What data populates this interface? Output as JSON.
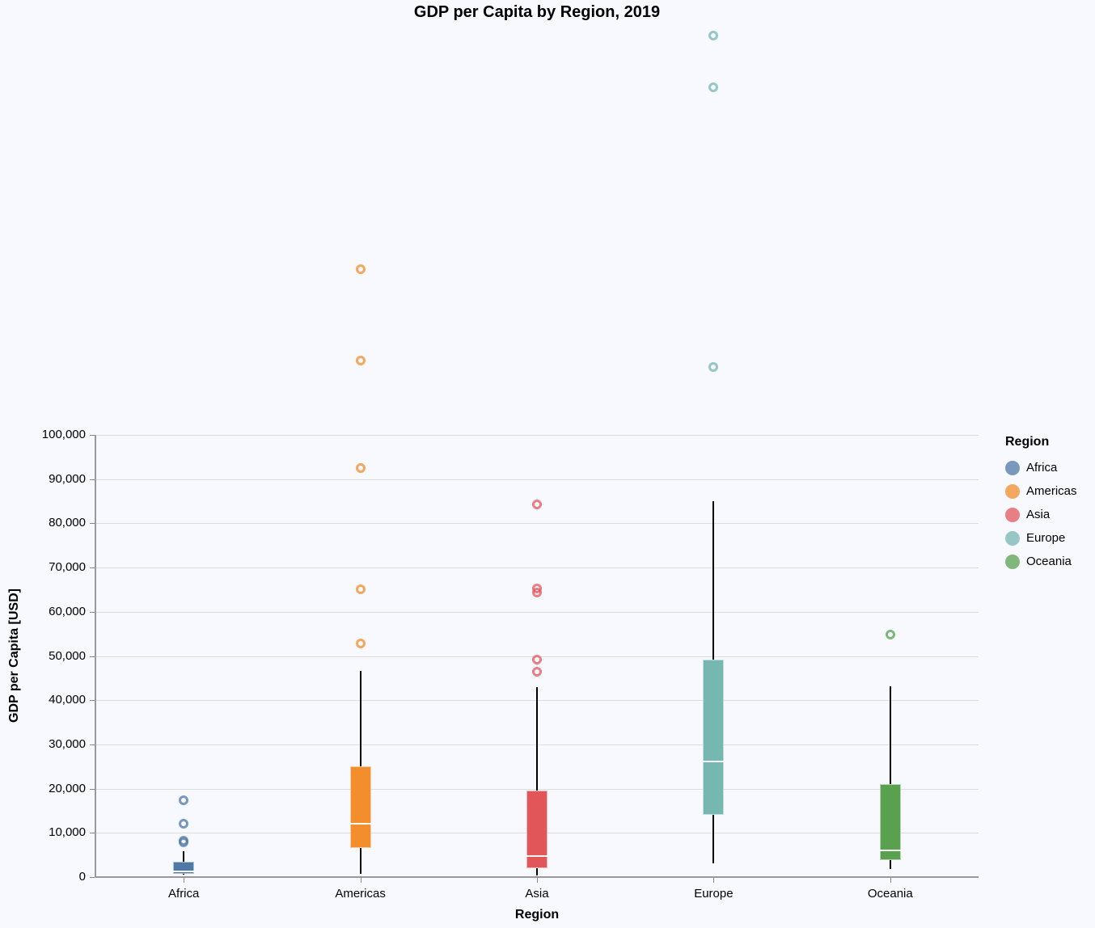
{
  "title": "GDP per Capita by Region, 2019",
  "chart_data": {
    "type": "boxplot",
    "title": "GDP per Capita by Region, 2019",
    "xlabel": "Region",
    "ylabel": "GDP per Capita [USD]",
    "ylim": [
      0,
      100000
    ],
    "yticks": [
      0,
      10000,
      20000,
      30000,
      40000,
      50000,
      60000,
      70000,
      80000,
      90000,
      100000
    ],
    "ytick_labels": [
      "0",
      "10,000",
      "20,000",
      "30,000",
      "40,000",
      "50,000",
      "60,000",
      "70,000",
      "80,000",
      "90,000",
      "100,000"
    ],
    "grid": true,
    "outliers_exceed_axis": true,
    "legend_position": "right",
    "categories": [
      "Africa",
      "Americas",
      "Asia",
      "Europe",
      "Oceania"
    ],
    "series": [
      {
        "name": "Africa",
        "color": "#4e79a7",
        "whisker_low": 600,
        "q1": 700,
        "median": 1300,
        "q3": 3400,
        "whisker_high": 5800,
        "outliers": [
          7900,
          8200,
          12000,
          17400
        ]
      },
      {
        "name": "Americas",
        "color": "#f28e2b",
        "whisker_low": 700,
        "q1": 6600,
        "median": 12100,
        "q3": 25100,
        "whisker_high": 46600,
        "outliers": [
          52800,
          65100,
          92500,
          116800,
          137500
        ]
      },
      {
        "name": "Asia",
        "color": "#e15759",
        "whisker_low": 400,
        "q1": 2000,
        "median": 4800,
        "q3": 19500,
        "whisker_high": 43000,
        "outliers": [
          46500,
          49100,
          64300,
          65200,
          84300
        ]
      },
      {
        "name": "Europe",
        "color": "#76b7b2",
        "whisker_low": 3100,
        "q1": 14000,
        "median": 26100,
        "q3": 49200,
        "whisker_high": 85000,
        "outliers": [
          115400,
          178600,
          190300
        ]
      },
      {
        "name": "Oceania",
        "color": "#59a14f",
        "whisker_low": 1800,
        "q1": 3800,
        "median": 6000,
        "q3": 21000,
        "whisker_high": 43100,
        "outliers": [
          54800
        ]
      }
    ]
  },
  "legend": {
    "title": "Region",
    "items": [
      {
        "label": "Africa",
        "color": "#4e79a7"
      },
      {
        "label": "Americas",
        "color": "#f28e2b"
      },
      {
        "label": "Asia",
        "color": "#e15759"
      },
      {
        "label": "Europe",
        "color": "#76b7b2"
      },
      {
        "label": "Oceania",
        "color": "#59a14f"
      }
    ]
  },
  "colors": {
    "background": "#f8f8ff",
    "gridline": "#dddddd",
    "axis": "#999999",
    "whisker": "#000000",
    "median": "#ffffff"
  }
}
